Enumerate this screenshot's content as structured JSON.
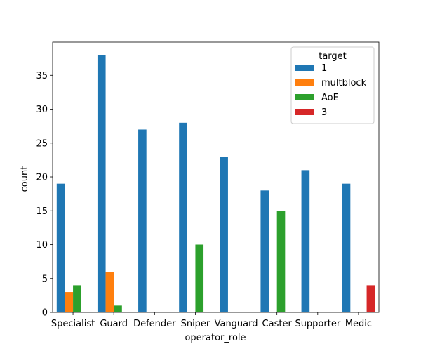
{
  "chart_data": {
    "type": "bar",
    "xlabel": "operator_role",
    "ylabel": "count",
    "ylim": [
      0,
      39.9
    ],
    "yticks": [
      0,
      5,
      10,
      15,
      20,
      25,
      30,
      35
    ],
    "grid": false,
    "categories": [
      "Specialist",
      "Guard",
      "Defender",
      "Sniper",
      "Vanguard",
      "Caster",
      "Supporter",
      "Medic"
    ],
    "legend": {
      "title": "target",
      "placement": "top-right"
    },
    "series": [
      {
        "name": "1",
        "color": "#1f77b4",
        "values": [
          19,
          38,
          27,
          28,
          23,
          18,
          21,
          19
        ]
      },
      {
        "name": "multblock",
        "color": "#ff7f0e",
        "values": [
          3,
          6,
          0,
          0,
          0,
          0,
          0,
          0
        ]
      },
      {
        "name": "AoE",
        "color": "#2ca02c",
        "values": [
          4,
          1,
          0,
          10,
          0,
          15,
          0,
          0
        ]
      },
      {
        "name": "3",
        "color": "#d62728",
        "values": [
          0,
          0,
          0,
          0,
          0,
          0,
          0,
          4
        ]
      }
    ]
  }
}
